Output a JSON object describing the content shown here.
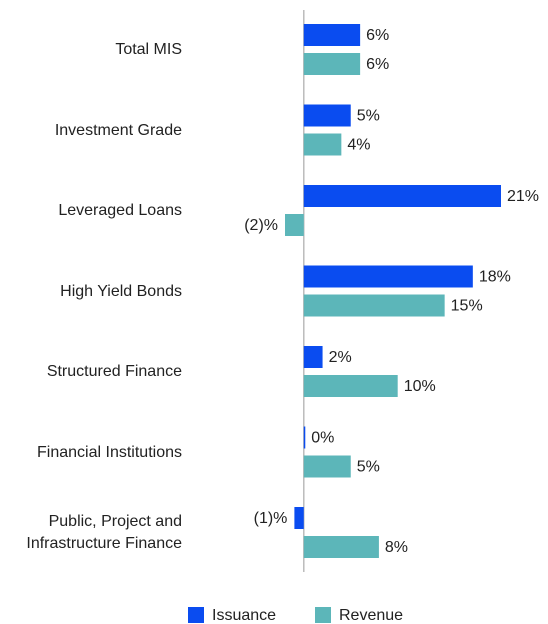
{
  "chart_data": {
    "type": "bar",
    "orientation": "horizontal",
    "categories": [
      "Total MIS",
      "Investment Grade",
      "Leveraged Loans",
      "High Yield Bonds",
      "Structured Finance",
      "Financial Institutions",
      "Public, Project and Infrastructure Finance"
    ],
    "series": [
      {
        "name": "Issuance",
        "color": "#0a4cf0",
        "values": [
          6,
          5,
          21,
          18,
          2,
          0,
          -1
        ],
        "value_labels": [
          "6%",
          "5%",
          "21%",
          "18%",
          "2%",
          "0%",
          "(1)%"
        ]
      },
      {
        "name": "Revenue",
        "color": "#5cb6b9",
        "values": [
          6,
          4,
          -2,
          15,
          10,
          5,
          8
        ],
        "value_labels": [
          "6%",
          "4%",
          "(2)%",
          "15%",
          "10%",
          "5%",
          "8%"
        ]
      }
    ],
    "legend": "bottom"
  }
}
